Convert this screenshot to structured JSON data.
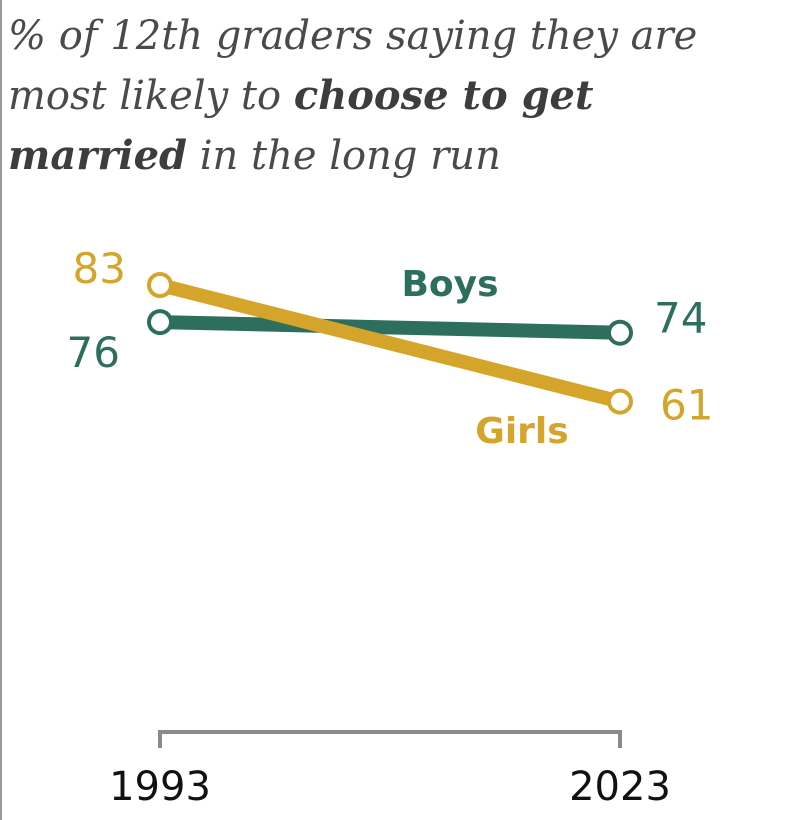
{
  "title": {
    "part1": "% of 12th graders saying they are most likely to ",
    "bold1": "choose to get married",
    "part2": " in the long run"
  },
  "colors": {
    "boys": "#2e6e5c",
    "girls": "#d4a52a",
    "axis": "#8a8a8a",
    "tick_text": "#111111"
  },
  "chart_data": {
    "type": "line",
    "title": "% of 12th graders saying they are most likely to choose to get married in the long run",
    "x": [
      "1993",
      "2023"
    ],
    "series": [
      {
        "name": "Boys",
        "values": [
          76,
          74
        ]
      },
      {
        "name": "Girls",
        "values": [
          83,
          61
        ]
      }
    ],
    "xlabel": "",
    "ylabel": "",
    "grid": false
  }
}
